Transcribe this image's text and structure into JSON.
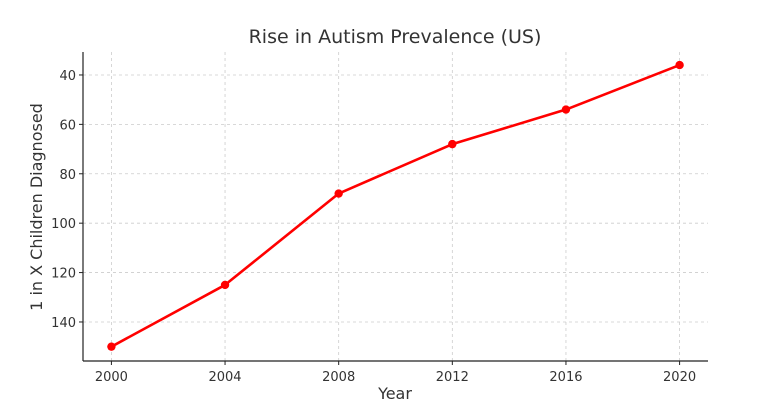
{
  "chart_data": {
    "type": "line",
    "title": "Rise in Autism Prevalence (US)",
    "xlabel": "Year",
    "ylabel": "1 in X Children Diagnosed",
    "x": [
      2000,
      2004,
      2008,
      2012,
      2016,
      2020
    ],
    "series": [
      {
        "name": "1 in X Children Diagnosed",
        "values": [
          150,
          125,
          88,
          68,
          54,
          36
        ],
        "color": "#ff0000"
      }
    ],
    "xticks": [
      "2000",
      "2004",
      "2008",
      "2012",
      "2016",
      "2020"
    ],
    "yticks": [
      "40",
      "60",
      "80",
      "100",
      "120",
      "140"
    ],
    "xlim": [
      1999,
      2021
    ],
    "ylim": [
      155.8,
      30.7
    ],
    "y_inverted": true,
    "grid": true,
    "legend": "none"
  }
}
